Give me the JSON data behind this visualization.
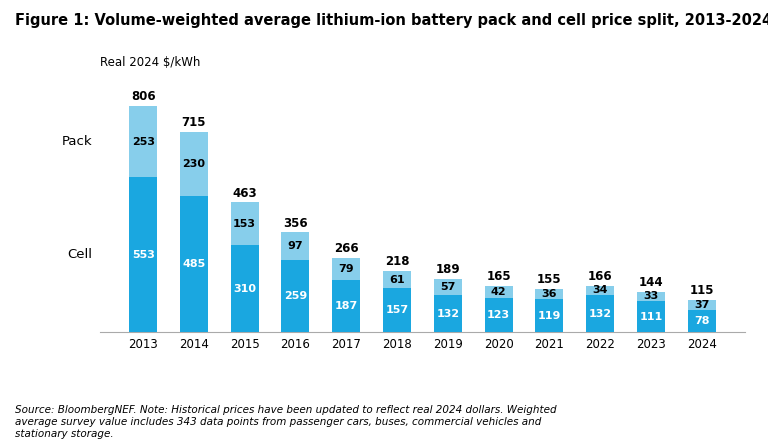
{
  "title": "Figure 1: Volume-weighted average lithium-ion battery pack and cell price split, 2013-2024",
  "ylabel": "Real 2024 $/kWh",
  "years": [
    2013,
    2014,
    2015,
    2016,
    2017,
    2018,
    2019,
    2020,
    2021,
    2022,
    2023,
    2024
  ],
  "cell_values": [
    553,
    485,
    310,
    259,
    187,
    157,
    132,
    123,
    119,
    132,
    111,
    78
  ],
  "pack_values": [
    253,
    230,
    153,
    97,
    79,
    61,
    57,
    42,
    36,
    34,
    33,
    37
  ],
  "total_values": [
    806,
    715,
    463,
    356,
    266,
    218,
    189,
    165,
    155,
    166,
    144,
    115
  ],
  "cell_color": "#1aA7E0",
  "pack_color": "#87CEEB",
  "pack_label": "Pack",
  "cell_label": "Cell",
  "ylim": [
    0,
    900
  ],
  "source_text": "Source: BloombergNEF. Note: Historical prices have been updated to reflect real 2024 dollars. Weighted\naverage survey value includes 343 data points from passenger cars, buses, commercial vehicles and\nstationary storage.",
  "background_color": "#ffffff",
  "title_fontsize": 10.5,
  "label_fontsize": 8.5,
  "tick_fontsize": 8.5,
  "bar_width": 0.55
}
